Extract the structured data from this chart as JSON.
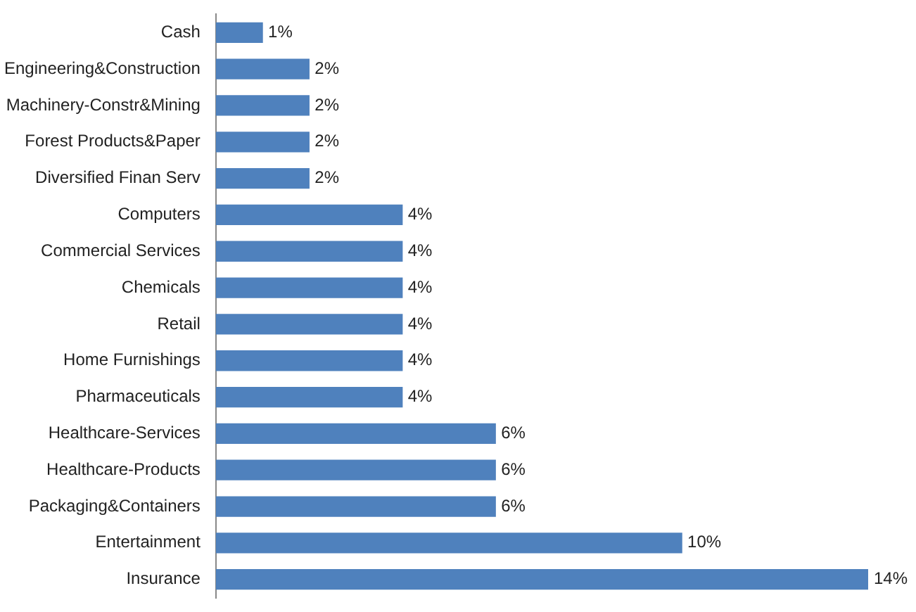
{
  "chart_data": {
    "type": "bar",
    "orientation": "horizontal",
    "color": "#4f81bd",
    "categories": [
      "Cash",
      "Engineering&Construction",
      "Machinery-Constr&Mining",
      "Forest Products&Paper",
      "Diversified Finan Serv",
      "Computers",
      "Commercial Services",
      "Chemicals",
      "Retail",
      "Home Furnishings",
      "Pharmaceuticals",
      "Healthcare-Services",
      "Healthcare-Products",
      "Packaging&Containers",
      "Entertainment",
      "Insurance"
    ],
    "values": [
      1,
      2,
      2,
      2,
      2,
      4,
      4,
      4,
      4,
      4,
      4,
      6,
      6,
      6,
      10,
      14
    ],
    "value_labels": [
      "1%",
      "2%",
      "2%",
      "2%",
      "2%",
      "4%",
      "4%",
      "4%",
      "4%",
      "4%",
      "4%",
      "6%",
      "6%",
      "6%",
      "10%",
      "14%"
    ]
  }
}
